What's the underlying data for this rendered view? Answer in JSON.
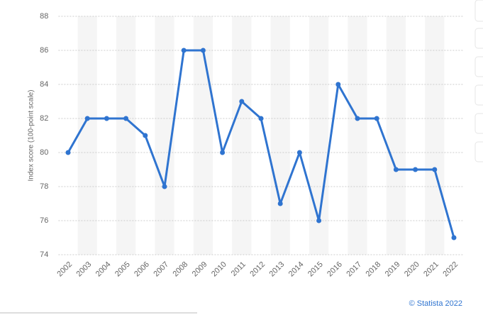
{
  "chart_data": {
    "type": "line",
    "y_label": "Index score (100-point scale)",
    "credit": "© Statista 2022",
    "categories": [
      "2002",
      "2003",
      "2004",
      "2005",
      "2006",
      "2007",
      "2008",
      "2009",
      "2010",
      "2011",
      "2012",
      "2013",
      "2014",
      "2015",
      "2016",
      "2017",
      "2018",
      "2019",
      "2020",
      "2021",
      "2022"
    ],
    "values": [
      80,
      82,
      82,
      82,
      81,
      78,
      86,
      86,
      80,
      83,
      82,
      77,
      80,
      76,
      84,
      82,
      82,
      79,
      79,
      79,
      75
    ],
    "color": "#2f74d0",
    "ylim": [
      74,
      88
    ],
    "yticks": [
      74,
      76,
      78,
      80,
      82,
      84,
      86,
      88
    ],
    "grid": true
  }
}
